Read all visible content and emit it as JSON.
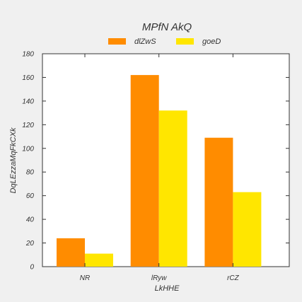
{
  "chart_data": {
    "type": "bar",
    "title": "MPfN AkQ",
    "xlabel": "LkHHE",
    "ylabel": "DqLEzzaMqFkCXk",
    "categories": [
      "NR",
      "lRyw",
      "rCZ"
    ],
    "series": [
      {
        "name": "dlZwS",
        "values": [
          24,
          162,
          109
        ],
        "color": "#ff8c00"
      },
      {
        "name": "goeD",
        "values": [
          11,
          132,
          63
        ],
        "color": "#ffe600"
      }
    ],
    "ylim": [
      0,
      180
    ],
    "yticks": [
      0,
      20,
      40,
      60,
      80,
      100,
      120,
      140,
      160,
      180
    ],
    "grid": false,
    "legend_position": "top-center"
  }
}
